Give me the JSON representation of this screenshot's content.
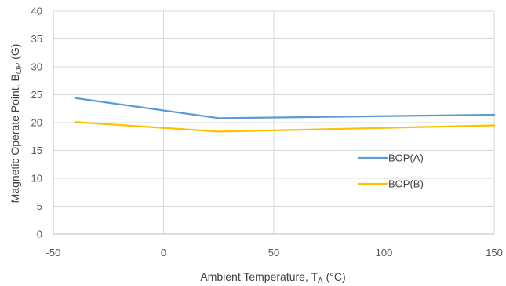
{
  "chart_data": {
    "type": "line",
    "xlabel": {
      "main": "Ambient Temperature, T",
      "sub": "A",
      "suffix": " (°C)"
    },
    "ylabel": {
      "main": "Magnetic Operate Point, B",
      "sub": "OP",
      "suffix": " (G)"
    },
    "xlim": [
      -50,
      150
    ],
    "ylim": [
      0,
      40
    ],
    "xticks": [
      -50,
      0,
      50,
      100,
      150
    ],
    "yticks": [
      0,
      5,
      10,
      15,
      20,
      25,
      30,
      35,
      40
    ],
    "grid": true,
    "legend_position": "right-center",
    "series": [
      {
        "name": "BOP(A)",
        "color": "#5B9BD5",
        "x": [
          -40,
          25,
          150
        ],
        "y": [
          24.4,
          20.8,
          21.4
        ]
      },
      {
        "name": "BOP(B)",
        "color": "#FFC000",
        "x": [
          -40,
          25,
          150
        ],
        "y": [
          20.1,
          18.4,
          19.5
        ]
      }
    ]
  }
}
